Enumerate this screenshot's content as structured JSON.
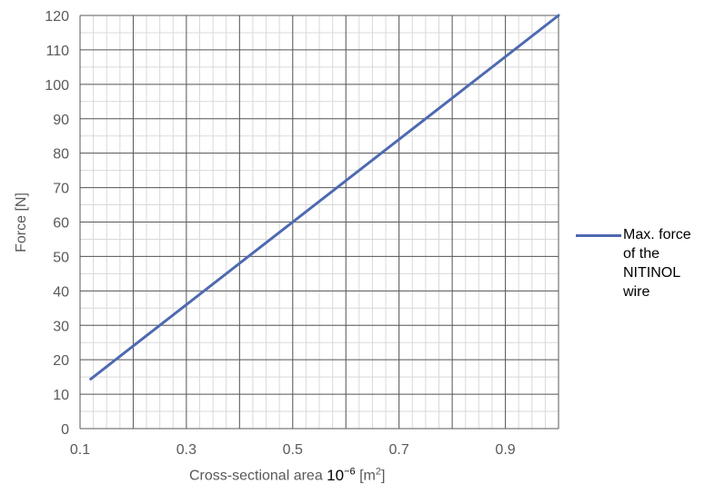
{
  "chart_data": {
    "type": "line",
    "title": "",
    "xlabel_prefix": "Cross-sectional area ",
    "xlabel_power_base": "10",
    "xlabel_power_exp": "−6",
    "xlabel_unit_open": " [m",
    "xlabel_unit_exp": "2",
    "xlabel_unit_close": "]",
    "ylabel": "Force [N]",
    "xlim": [
      0.1,
      1.0
    ],
    "ylim": [
      0,
      120
    ],
    "x_ticks": [
      "0.1",
      "0.3",
      "0.5",
      "0.7",
      "0.9"
    ],
    "y_ticks": [
      "0",
      "10",
      "20",
      "30",
      "40",
      "50",
      "60",
      "70",
      "80",
      "90",
      "100",
      "110",
      "120"
    ],
    "series": [
      {
        "name": "Max. force of the NITINOL wire",
        "color": "#4e69b1",
        "x": [
          0.12,
          1.0
        ],
        "y": [
          14.4,
          120
        ]
      }
    ],
    "legend_position": "right",
    "grid": true
  },
  "legend": {
    "line1": "Max. force",
    "line2": "of the",
    "line3": "NITINOL",
    "line4": "wire"
  }
}
